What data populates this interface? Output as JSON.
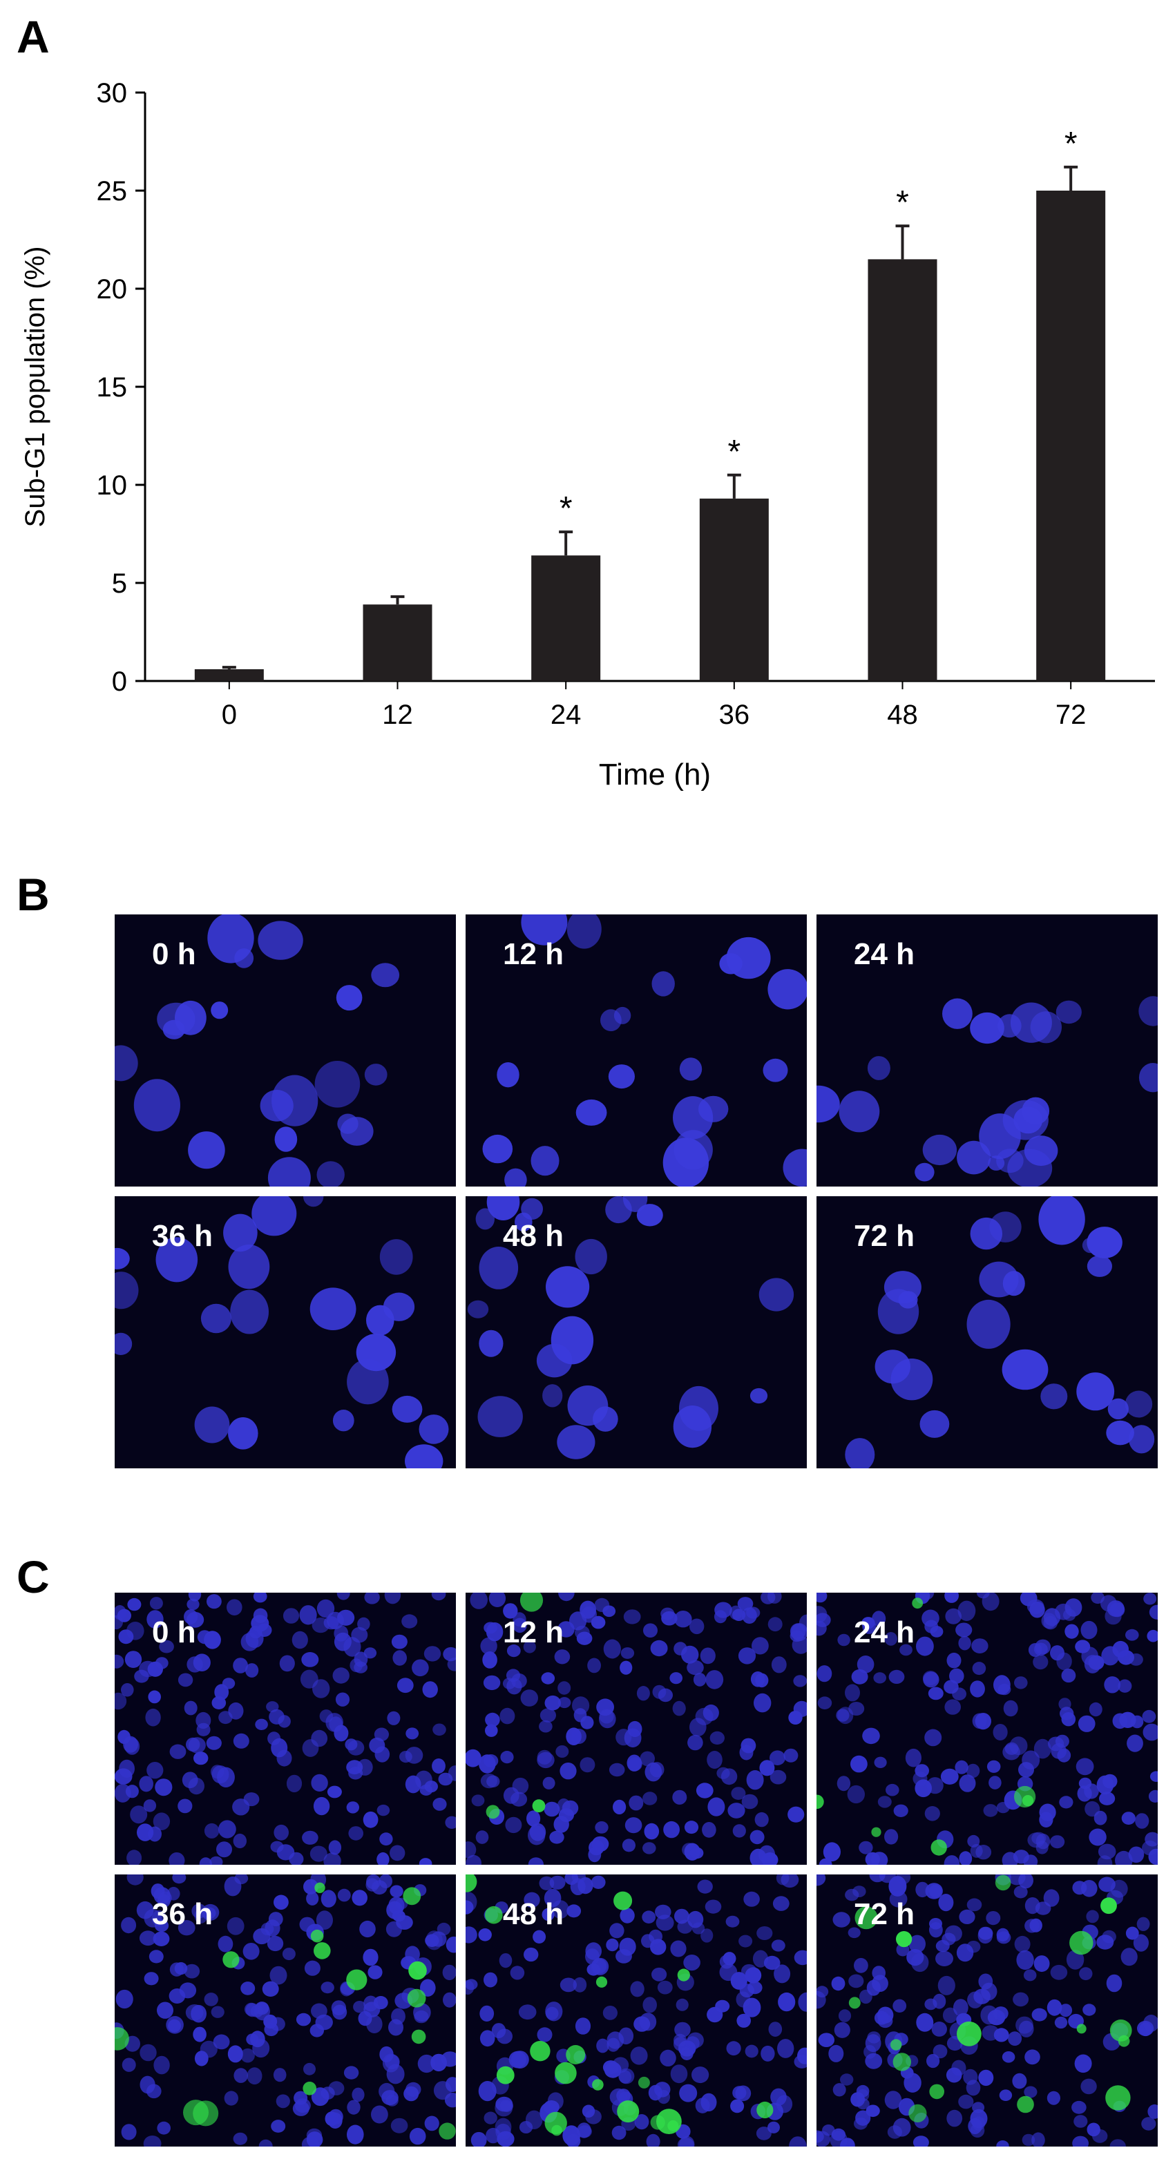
{
  "panels": [
    {
      "letter": "A"
    },
    {
      "letter": "B"
    },
    {
      "letter": "C"
    }
  ],
  "chart_data": {
    "type": "bar",
    "title": "",
    "xlabel": "Time (h)",
    "ylabel": "Sub-G1 population (%)",
    "categories": [
      "0",
      "12",
      "24",
      "36",
      "48",
      "72"
    ],
    "values": [
      0.6,
      3.9,
      6.4,
      9.3,
      21.5,
      25.0
    ],
    "errors": [
      0.1,
      0.4,
      1.2,
      1.2,
      1.7,
      1.2
    ],
    "significance": [
      "",
      "",
      "*",
      "*",
      "*",
      "*"
    ],
    "ylim": [
      0,
      30
    ],
    "yticks": [
      "0",
      "5",
      "10",
      "15",
      "20",
      "25",
      "30"
    ],
    "grid": false,
    "legend": "none",
    "bar_color": "#231f20"
  },
  "panel_b": {
    "labels": [
      "0 h",
      "12 h",
      "24 h",
      "36 h",
      "48 h",
      "72 h"
    ],
    "stain": "blue nuclei on black",
    "nucleus_color": "#3b3bdc",
    "background_color": "#05041a"
  },
  "panel_c": {
    "labels": [
      "0 h",
      "12 h",
      "24 h",
      "36 h",
      "48 h",
      "72 h"
    ],
    "nucleus_color": "#3333cc",
    "positive_color": "#33e04a",
    "background_color": "#04031a",
    "green_positive_cells": [
      0,
      3,
      6,
      14,
      18,
      16
    ]
  }
}
